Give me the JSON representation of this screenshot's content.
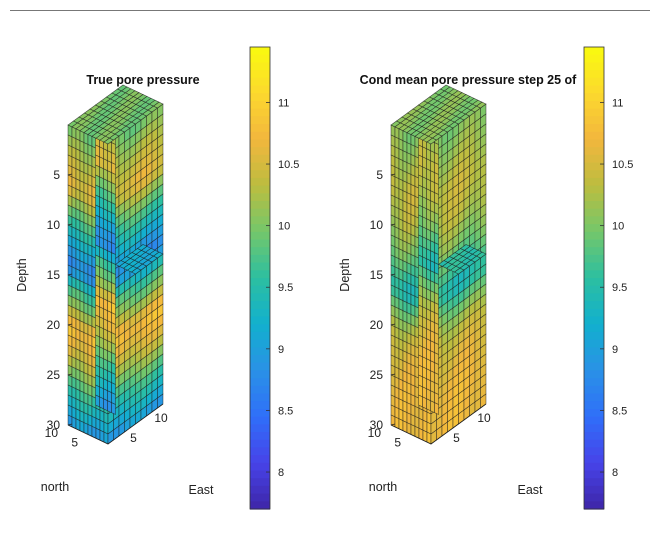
{
  "colors": {
    "colormap": [
      "#3e26a8",
      "#4743e9",
      "#2f6ff9",
      "#2a91e6",
      "#12b0ce",
      "#2cbfa0",
      "#74c76b",
      "#bcbd3f",
      "#f2b63d",
      "#fcd92e",
      "#f9fb0e"
    ]
  },
  "chart_data": [
    {
      "type": "3d-volume-slice",
      "title": "True pore pressure",
      "zlabel": "Depth",
      "xlabel": "East",
      "ylabel": "north",
      "z_ticks": [
        "5",
        "10",
        "15",
        "20",
        "25",
        "30"
      ],
      "north_ticks": [
        "10",
        "5"
      ],
      "east_ticks": [
        "5",
        "10"
      ],
      "zlim": [
        0,
        30
      ],
      "north_lim": [
        0,
        10
      ],
      "east_lim": [
        0,
        10
      ],
      "colorbar": {
        "min": 7.7,
        "max": 11.45,
        "ticks": [
          8,
          8.5,
          9,
          9.5,
          10,
          10.5,
          11
        ],
        "tick_labels": [
          "8",
          "8.5",
          "9",
          "9.5",
          "10",
          "10.5",
          "11"
        ]
      },
      "depth_profile": {
        "depth": [
          0,
          3,
          6,
          9,
          12,
          14,
          16,
          18,
          20,
          22,
          24,
          26,
          28,
          30
        ],
        "value": [
          9.9,
          10.3,
          10.6,
          9.8,
          9.1,
          8.7,
          9.6,
          10.1,
          10.8,
          10.6,
          10.2,
          9.7,
          9.3,
          8.9
        ]
      }
    },
    {
      "type": "3d-volume-slice",
      "title": "Cond mean pore pressure step 25 of",
      "zlabel": "Depth",
      "xlabel": "East",
      "ylabel": "north",
      "z_ticks": [
        "5",
        "10",
        "15",
        "20",
        "25",
        "30"
      ],
      "north_ticks": [
        "10",
        "5"
      ],
      "east_ticks": [
        "5",
        "10"
      ],
      "zlim": [
        0,
        30
      ],
      "north_lim": [
        0,
        10
      ],
      "east_lim": [
        0,
        10
      ],
      "colorbar": {
        "min": 7.7,
        "max": 11.45,
        "ticks": [
          8,
          8.5,
          9,
          9.5,
          10,
          10.5,
          11
        ],
        "tick_labels": [
          "8",
          "8.5",
          "9",
          "9.5",
          "10",
          "10.5",
          "11"
        ]
      },
      "depth_profile": {
        "depth": [
          0,
          3,
          6,
          9,
          12,
          14,
          16,
          18,
          20,
          22,
          24,
          26,
          28,
          30
        ],
        "value": [
          10.0,
          10.2,
          10.4,
          10.3,
          10.0,
          9.7,
          9.4,
          9.9,
          10.3,
          10.5,
          10.6,
          10.7,
          10.7,
          10.7
        ]
      }
    }
  ]
}
